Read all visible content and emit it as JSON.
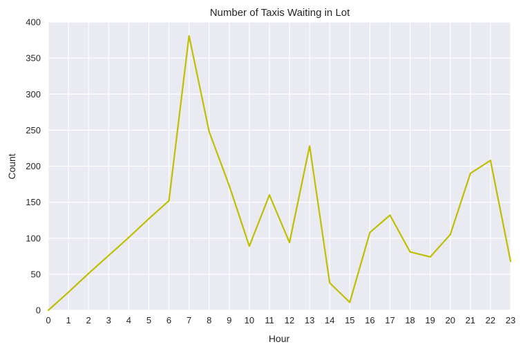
{
  "chart_data": {
    "type": "line",
    "title": "Number of Taxis Waiting in Lot",
    "xlabel": "Hour",
    "ylabel": "Count",
    "xlim": [
      0,
      23
    ],
    "ylim": [
      0,
      400
    ],
    "x_ticks": [
      0,
      1,
      2,
      3,
      4,
      5,
      6,
      7,
      8,
      9,
      10,
      11,
      12,
      13,
      14,
      15,
      16,
      17,
      18,
      19,
      20,
      21,
      22,
      23
    ],
    "y_ticks": [
      0,
      50,
      100,
      150,
      200,
      250,
      300,
      350,
      400
    ],
    "grid": true,
    "legend": "none",
    "colors": {
      "background": "#eaeaf2",
      "grid": "#ffffff",
      "line": "#bfbf00"
    },
    "series": [
      {
        "x": [
          0,
          1,
          2,
          3,
          4,
          5,
          6,
          7,
          8,
          9,
          10,
          11,
          12,
          13,
          14,
          15,
          16,
          17,
          18,
          19,
          20,
          21,
          22,
          23
        ],
        "values": [
          0,
          25,
          51,
          76,
          101,
          127,
          152,
          381,
          248,
          173,
          89,
          160,
          94,
          228,
          38,
          11,
          108,
          132,
          81,
          74,
          105,
          190,
          208,
          68
        ]
      }
    ]
  }
}
